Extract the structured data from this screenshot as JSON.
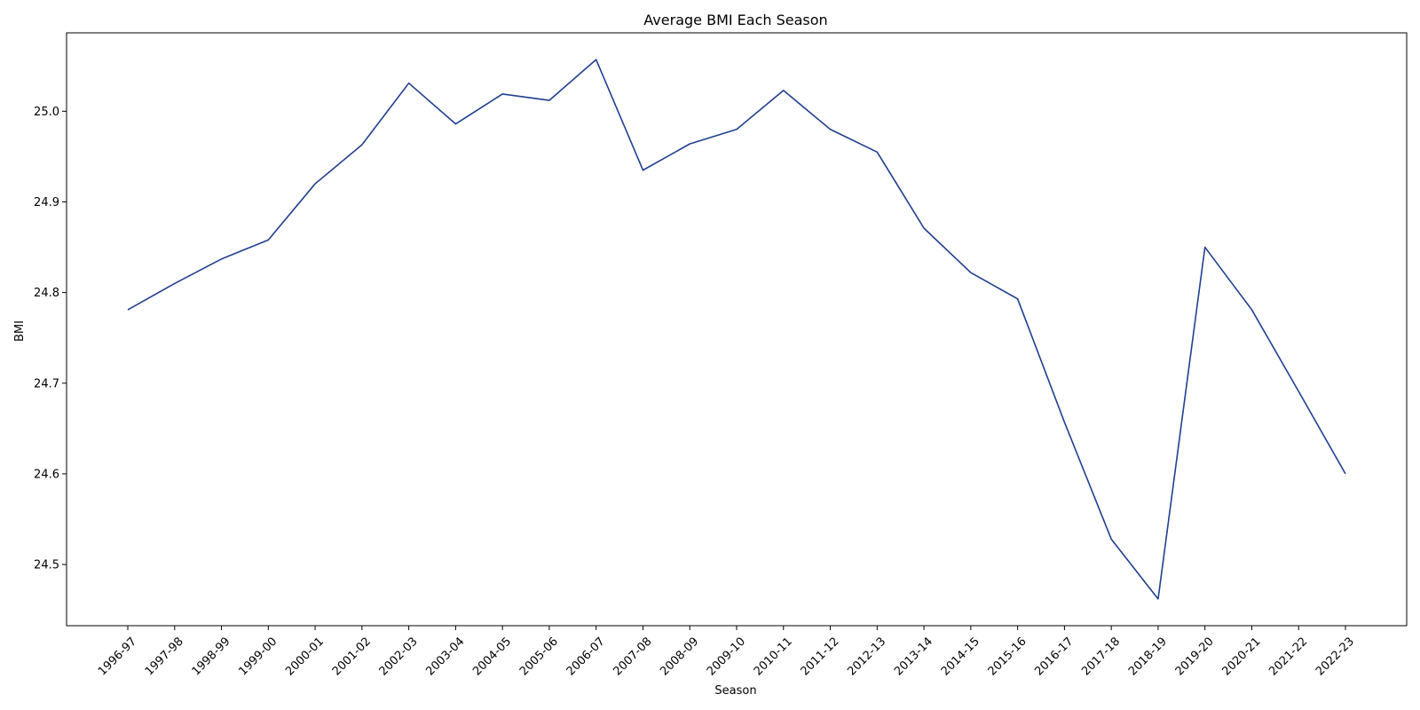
{
  "chart_data": {
    "type": "line",
    "title": "Average BMI Each Season",
    "xlabel": "Season",
    "ylabel": "BMI",
    "categories": [
      "1996-97",
      "1997-98",
      "1998-99",
      "1999-00",
      "2000-01",
      "2001-02",
      "2002-03",
      "2003-04",
      "2004-05",
      "2005-06",
      "2006-07",
      "2007-08",
      "2008-09",
      "2009-10",
      "2010-11",
      "2011-12",
      "2012-13",
      "2013-14",
      "2014-15",
      "2015-16",
      "2016-17",
      "2017-18",
      "2018-19",
      "2019-20",
      "2020-21",
      "2021-22",
      "2022-23"
    ],
    "series": [
      {
        "values": [
          24.781,
          24.81,
          24.837,
          24.858,
          24.92,
          24.963,
          25.031,
          24.986,
          25.019,
          25.012,
          25.057,
          24.935,
          24.964,
          24.98,
          25.023,
          24.98,
          24.955,
          24.871,
          24.822,
          24.793,
          24.657,
          24.528,
          24.462,
          24.85,
          24.781,
          24.691,
          24.6
        ],
        "color": "#1f3f8f"
      }
    ],
    "yticks": [
      "24.5",
      "24.6",
      "24.7",
      "24.8",
      "24.9",
      "25.0"
    ],
    "ylim": [
      24.4325,
      25.0865
    ],
    "grid": false,
    "legend": "none"
  }
}
